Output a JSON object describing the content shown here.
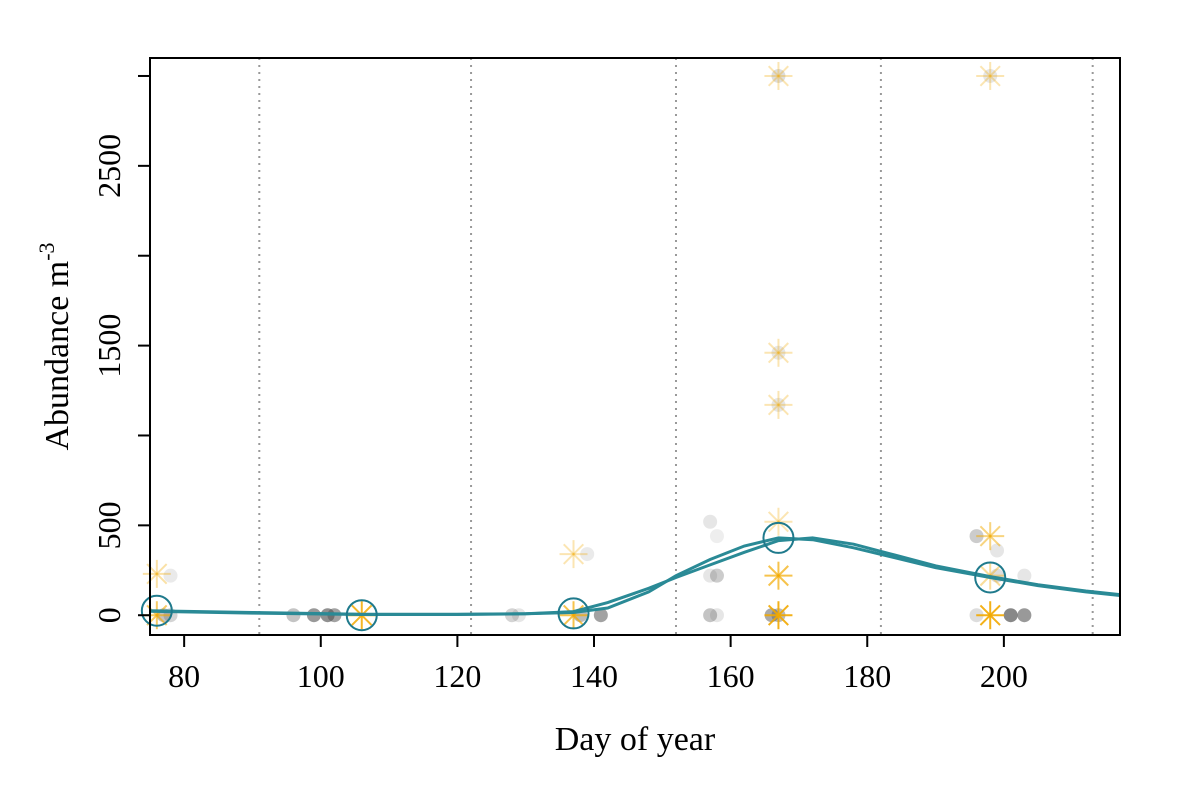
{
  "chart_data": {
    "type": "scatter",
    "xlabel": "Day of year",
    "ylabel": "Abundance m",
    "ylabel_superscript": "-3",
    "xlim": [
      75,
      217
    ],
    "ylim": [
      -110,
      3100
    ],
    "xticks": [
      80,
      100,
      120,
      140,
      160,
      180,
      200
    ],
    "xtick_labels": [
      "80",
      "100",
      "120",
      "140",
      "160",
      "180",
      "200"
    ],
    "yticks": [
      0,
      500,
      1000,
      1500,
      2000,
      2500,
      3000
    ],
    "ytick_labels": [
      "0",
      "500",
      "1500",
      "2500"
    ],
    "ytick_labels_at": [
      0,
      500,
      1500,
      2500
    ],
    "vlines_x": [
      91,
      122,
      152,
      182,
      213
    ],
    "grid": false,
    "colors": {
      "points": "#555555",
      "stars": "#f2a900",
      "mean_circles": "#1f7a8c",
      "fit_line": "#2a8a96",
      "vline": "#999999"
    },
    "series": [
      {
        "marker": "filled-circle",
        "color": "#555555",
        "points": [
          {
            "x": 77,
            "y": 0,
            "a": 0.35
          },
          {
            "x": 78,
            "y": 0,
            "a": 0.25
          },
          {
            "x": 78,
            "y": 220,
            "a": 0.12
          },
          {
            "x": 96,
            "y": 0,
            "a": 0.35
          },
          {
            "x": 99,
            "y": 0,
            "a": 0.6
          },
          {
            "x": 101,
            "y": 0,
            "a": 0.65
          },
          {
            "x": 102,
            "y": 0,
            "a": 0.55
          },
          {
            "x": 128,
            "y": 0,
            "a": 0.25
          },
          {
            "x": 129,
            "y": 0,
            "a": 0.15
          },
          {
            "x": 138,
            "y": 0,
            "a": 0.4
          },
          {
            "x": 139,
            "y": 340,
            "a": 0.12
          },
          {
            "x": 141,
            "y": 0,
            "a": 0.55
          },
          {
            "x": 157,
            "y": 520,
            "a": 0.15
          },
          {
            "x": 158,
            "y": 440,
            "a": 0.1
          },
          {
            "x": 157,
            "y": 220,
            "a": 0.15
          },
          {
            "x": 158,
            "y": 220,
            "a": 0.3
          },
          {
            "x": 157,
            "y": 0,
            "a": 0.35
          },
          {
            "x": 158,
            "y": 0,
            "a": 0.15
          },
          {
            "x": 166,
            "y": 0,
            "a": 0.5
          },
          {
            "x": 167,
            "y": 0,
            "a": 0.4
          },
          {
            "x": 196,
            "y": 440,
            "a": 0.3
          },
          {
            "x": 196,
            "y": 0,
            "a": 0.2
          },
          {
            "x": 199,
            "y": 360,
            "a": 0.15
          },
          {
            "x": 199,
            "y": 220,
            "a": 0.2
          },
          {
            "x": 201,
            "y": 0,
            "a": 0.7
          },
          {
            "x": 203,
            "y": 0,
            "a": 0.6
          },
          {
            "x": 203,
            "y": 220,
            "a": 0.15
          },
          {
            "x": 167,
            "y": 3000,
            "a": 0.2
          },
          {
            "x": 167,
            "y": 1460,
            "a": 0.15
          },
          {
            "x": 167,
            "y": 1170,
            "a": 0.15
          },
          {
            "x": 198,
            "y": 3000,
            "a": 0.15
          }
        ]
      },
      {
        "marker": "asterisk",
        "color": "#f2a900",
        "points": [
          {
            "x": 76,
            "y": 230,
            "a": 0.35
          },
          {
            "x": 76,
            "y": 0,
            "a": 0.6
          },
          {
            "x": 106,
            "y": 0,
            "a": 0.85
          },
          {
            "x": 137,
            "y": 340,
            "a": 0.3
          },
          {
            "x": 137,
            "y": 0,
            "a": 0.7
          },
          {
            "x": 167,
            "y": 3000,
            "a": 0.3
          },
          {
            "x": 167,
            "y": 1460,
            "a": 0.3
          },
          {
            "x": 167,
            "y": 1170,
            "a": 0.3
          },
          {
            "x": 167,
            "y": 520,
            "a": 0.3
          },
          {
            "x": 167,
            "y": 220,
            "a": 0.7
          },
          {
            "x": 167,
            "y": 0,
            "a": 0.9
          },
          {
            "x": 198,
            "y": 3000,
            "a": 0.3
          },
          {
            "x": 198,
            "y": 440,
            "a": 0.5
          },
          {
            "x": 198,
            "y": 220,
            "a": 0.4
          },
          {
            "x": 198,
            "y": 0,
            "a": 0.9
          }
        ]
      },
      {
        "marker": "open-circle",
        "color": "#1f7a8c",
        "points": [
          {
            "x": 76,
            "y": 25
          },
          {
            "x": 106,
            "y": 0
          },
          {
            "x": 137,
            "y": 10
          },
          {
            "x": 167,
            "y": 430
          },
          {
            "x": 198,
            "y": 210
          }
        ]
      }
    ],
    "fit_lines": [
      {
        "color": "#2a8a96",
        "x": [
          75,
          90,
          106,
          120,
          130,
          137,
          142,
          148,
          152,
          157,
          162,
          167,
          172,
          178,
          184,
          190,
          198,
          205,
          212,
          217
        ],
        "y": [
          25,
          15,
          5,
          5,
          8,
          15,
          40,
          130,
          220,
          310,
          385,
          430,
          420,
          375,
          320,
          265,
          210,
          165,
          130,
          110
        ]
      },
      {
        "color": "#2a8a96",
        "x": [
          75,
          90,
          106,
          120,
          130,
          137,
          142,
          148,
          152,
          157,
          162,
          167,
          172,
          178,
          184,
          190,
          198,
          205,
          212,
          217
        ],
        "y": [
          22,
          12,
          4,
          4,
          8,
          20,
          70,
          150,
          210,
          280,
          350,
          415,
          430,
          395,
          335,
          275,
          215,
          170,
          135,
          115
        ]
      }
    ]
  }
}
